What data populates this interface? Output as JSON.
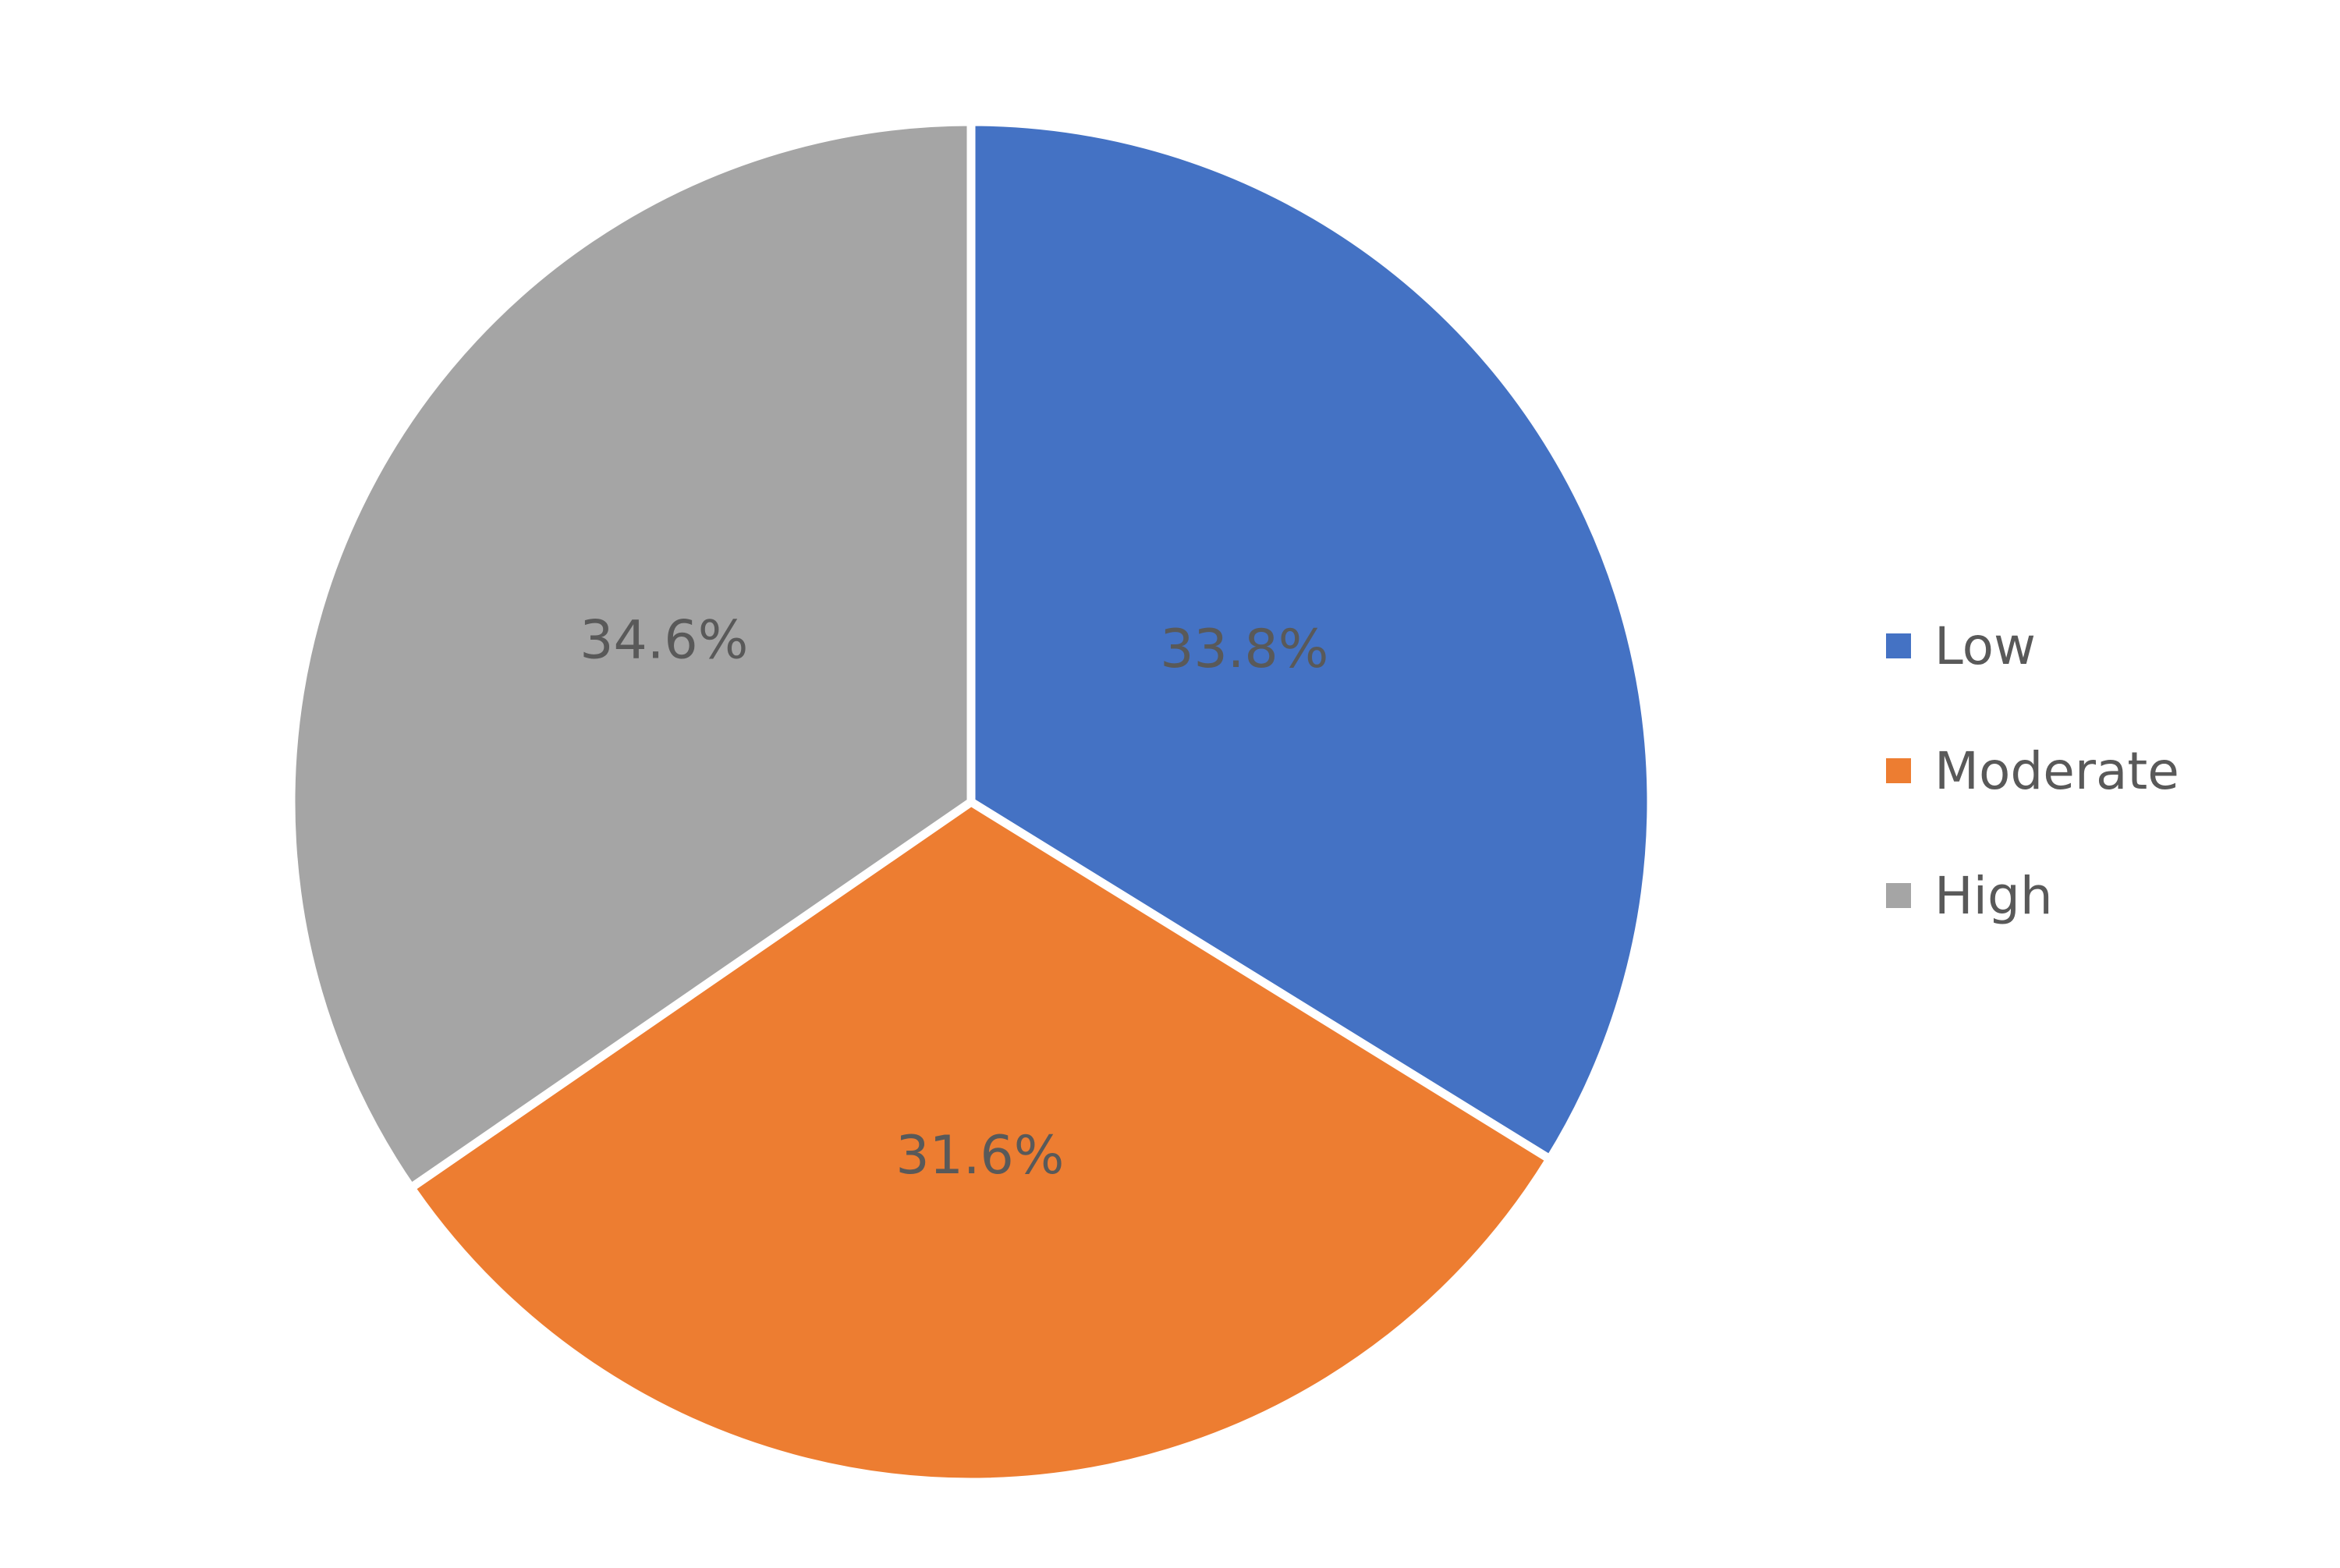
{
  "chart_data": {
    "type": "pie",
    "title": "",
    "categories": [
      "Low",
      "Moderate",
      "High"
    ],
    "values": [
      33.8,
      31.6,
      34.6
    ],
    "data_labels": [
      "33.8%",
      "31.6%",
      "34.6%"
    ],
    "colors": [
      "#4472C4",
      "#ED7D31",
      "#A5A5A5"
    ],
    "start_angle_deg": 0,
    "direction": "clockwise",
    "legend": {
      "placement": "right",
      "items": [
        {
          "label": "Low",
          "color": "#4472C4"
        },
        {
          "label": "Moderate",
          "color": "#ED7D31"
        },
        {
          "label": "High",
          "color": "#A5A5A5"
        }
      ]
    }
  }
}
